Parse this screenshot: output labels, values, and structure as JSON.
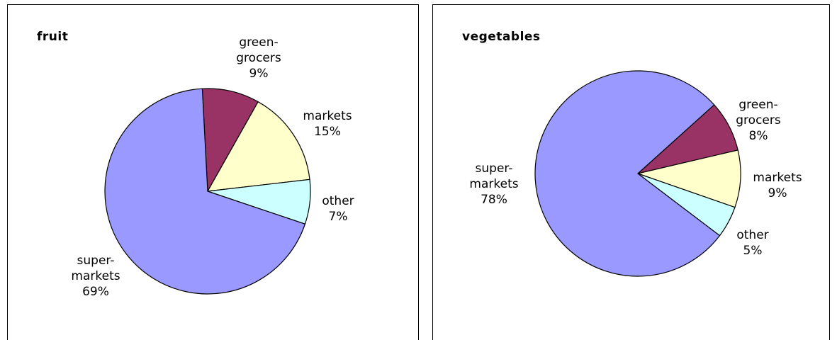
{
  "chart_data": [
    {
      "type": "pie",
      "title": "fruit",
      "categories": [
        "green-grocers",
        "markets",
        "other",
        "super-markets"
      ],
      "values": [
        9,
        15,
        7,
        69
      ],
      "value_labels": [
        "9%",
        "15%",
        "7%",
        "69%"
      ],
      "colors": [
        "#993366",
        "#ffffcc",
        "#ccffff",
        "#9999ff"
      ]
    },
    {
      "type": "pie",
      "title": "vegetables",
      "categories": [
        "green-grocers",
        "markets",
        "other",
        "super-markets"
      ],
      "values": [
        8,
        9,
        5,
        78
      ],
      "value_labels": [
        "8%",
        "9%",
        "5%",
        "78%"
      ],
      "colors": [
        "#993366",
        "#ffffcc",
        "#ccffff",
        "#9999ff"
      ]
    }
  ]
}
